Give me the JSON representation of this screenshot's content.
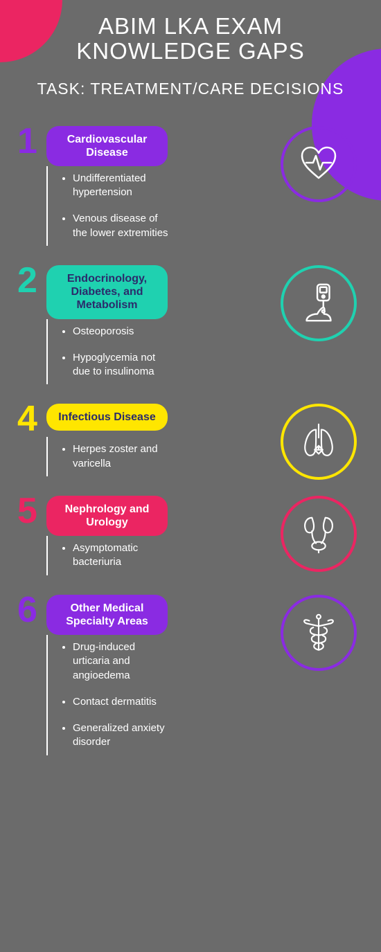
{
  "header": {
    "title_line1": "ABIM LKA EXAM",
    "title_line2": "KNOWLEDGE GAPS",
    "subtitle": "TASK: TREATMENT/CARE DECISIONS"
  },
  "colors": {
    "background": "#6b6b6b",
    "corner_tl": "#eb2562",
    "corner_tr": "#8a2be2",
    "text": "#ffffff"
  },
  "sections": [
    {
      "num": "1",
      "num_color": "#8a2be2",
      "pill_bg": "#8a2be2",
      "pill_text_color": "#ffffff",
      "pill_label": "Cardiovascular Disease",
      "circle_color": "#8a2be2",
      "icon": "heart",
      "bullets": [
        "Undifferentiated hypertension",
        "Venous disease of the lower extremities"
      ]
    },
    {
      "num": "2",
      "num_color": "#1fd1b0",
      "pill_bg": "#1fd1b0",
      "pill_text_color": "#2b2b6b",
      "pill_label": "Endocrinology, Diabetes, and Metabolism",
      "circle_color": "#1fd1b0",
      "icon": "glucose",
      "bullets": [
        "Osteoporosis",
        "Hypoglycemia not due to insulinoma"
      ]
    },
    {
      "num": "4",
      "num_color": "#ffe600",
      "pill_bg": "#ffe600",
      "pill_text_color": "#2b2b6b",
      "pill_label": "Infectious Disease",
      "circle_color": "#ffe600",
      "icon": "lungs",
      "bullets": [
        "Herpes zoster and varicella"
      ]
    },
    {
      "num": "5",
      "num_color": "#eb2562",
      "pill_bg": "#eb2562",
      "pill_text_color": "#ffffff",
      "pill_label": "Nephrology and Urology",
      "circle_color": "#eb2562",
      "icon": "kidney",
      "bullets": [
        "Asymptomatic bacteriuria"
      ]
    },
    {
      "num": "6",
      "num_color": "#8a2be2",
      "pill_bg": "#8a2be2",
      "pill_text_color": "#ffffff",
      "pill_label": "Other Medical Specialty Areas",
      "circle_color": "#8a2be2",
      "icon": "caduceus",
      "bullets": [
        "Drug-induced urticaria and angioedema",
        "Contact dermatitis",
        "Generalized anxiety disorder"
      ]
    }
  ]
}
